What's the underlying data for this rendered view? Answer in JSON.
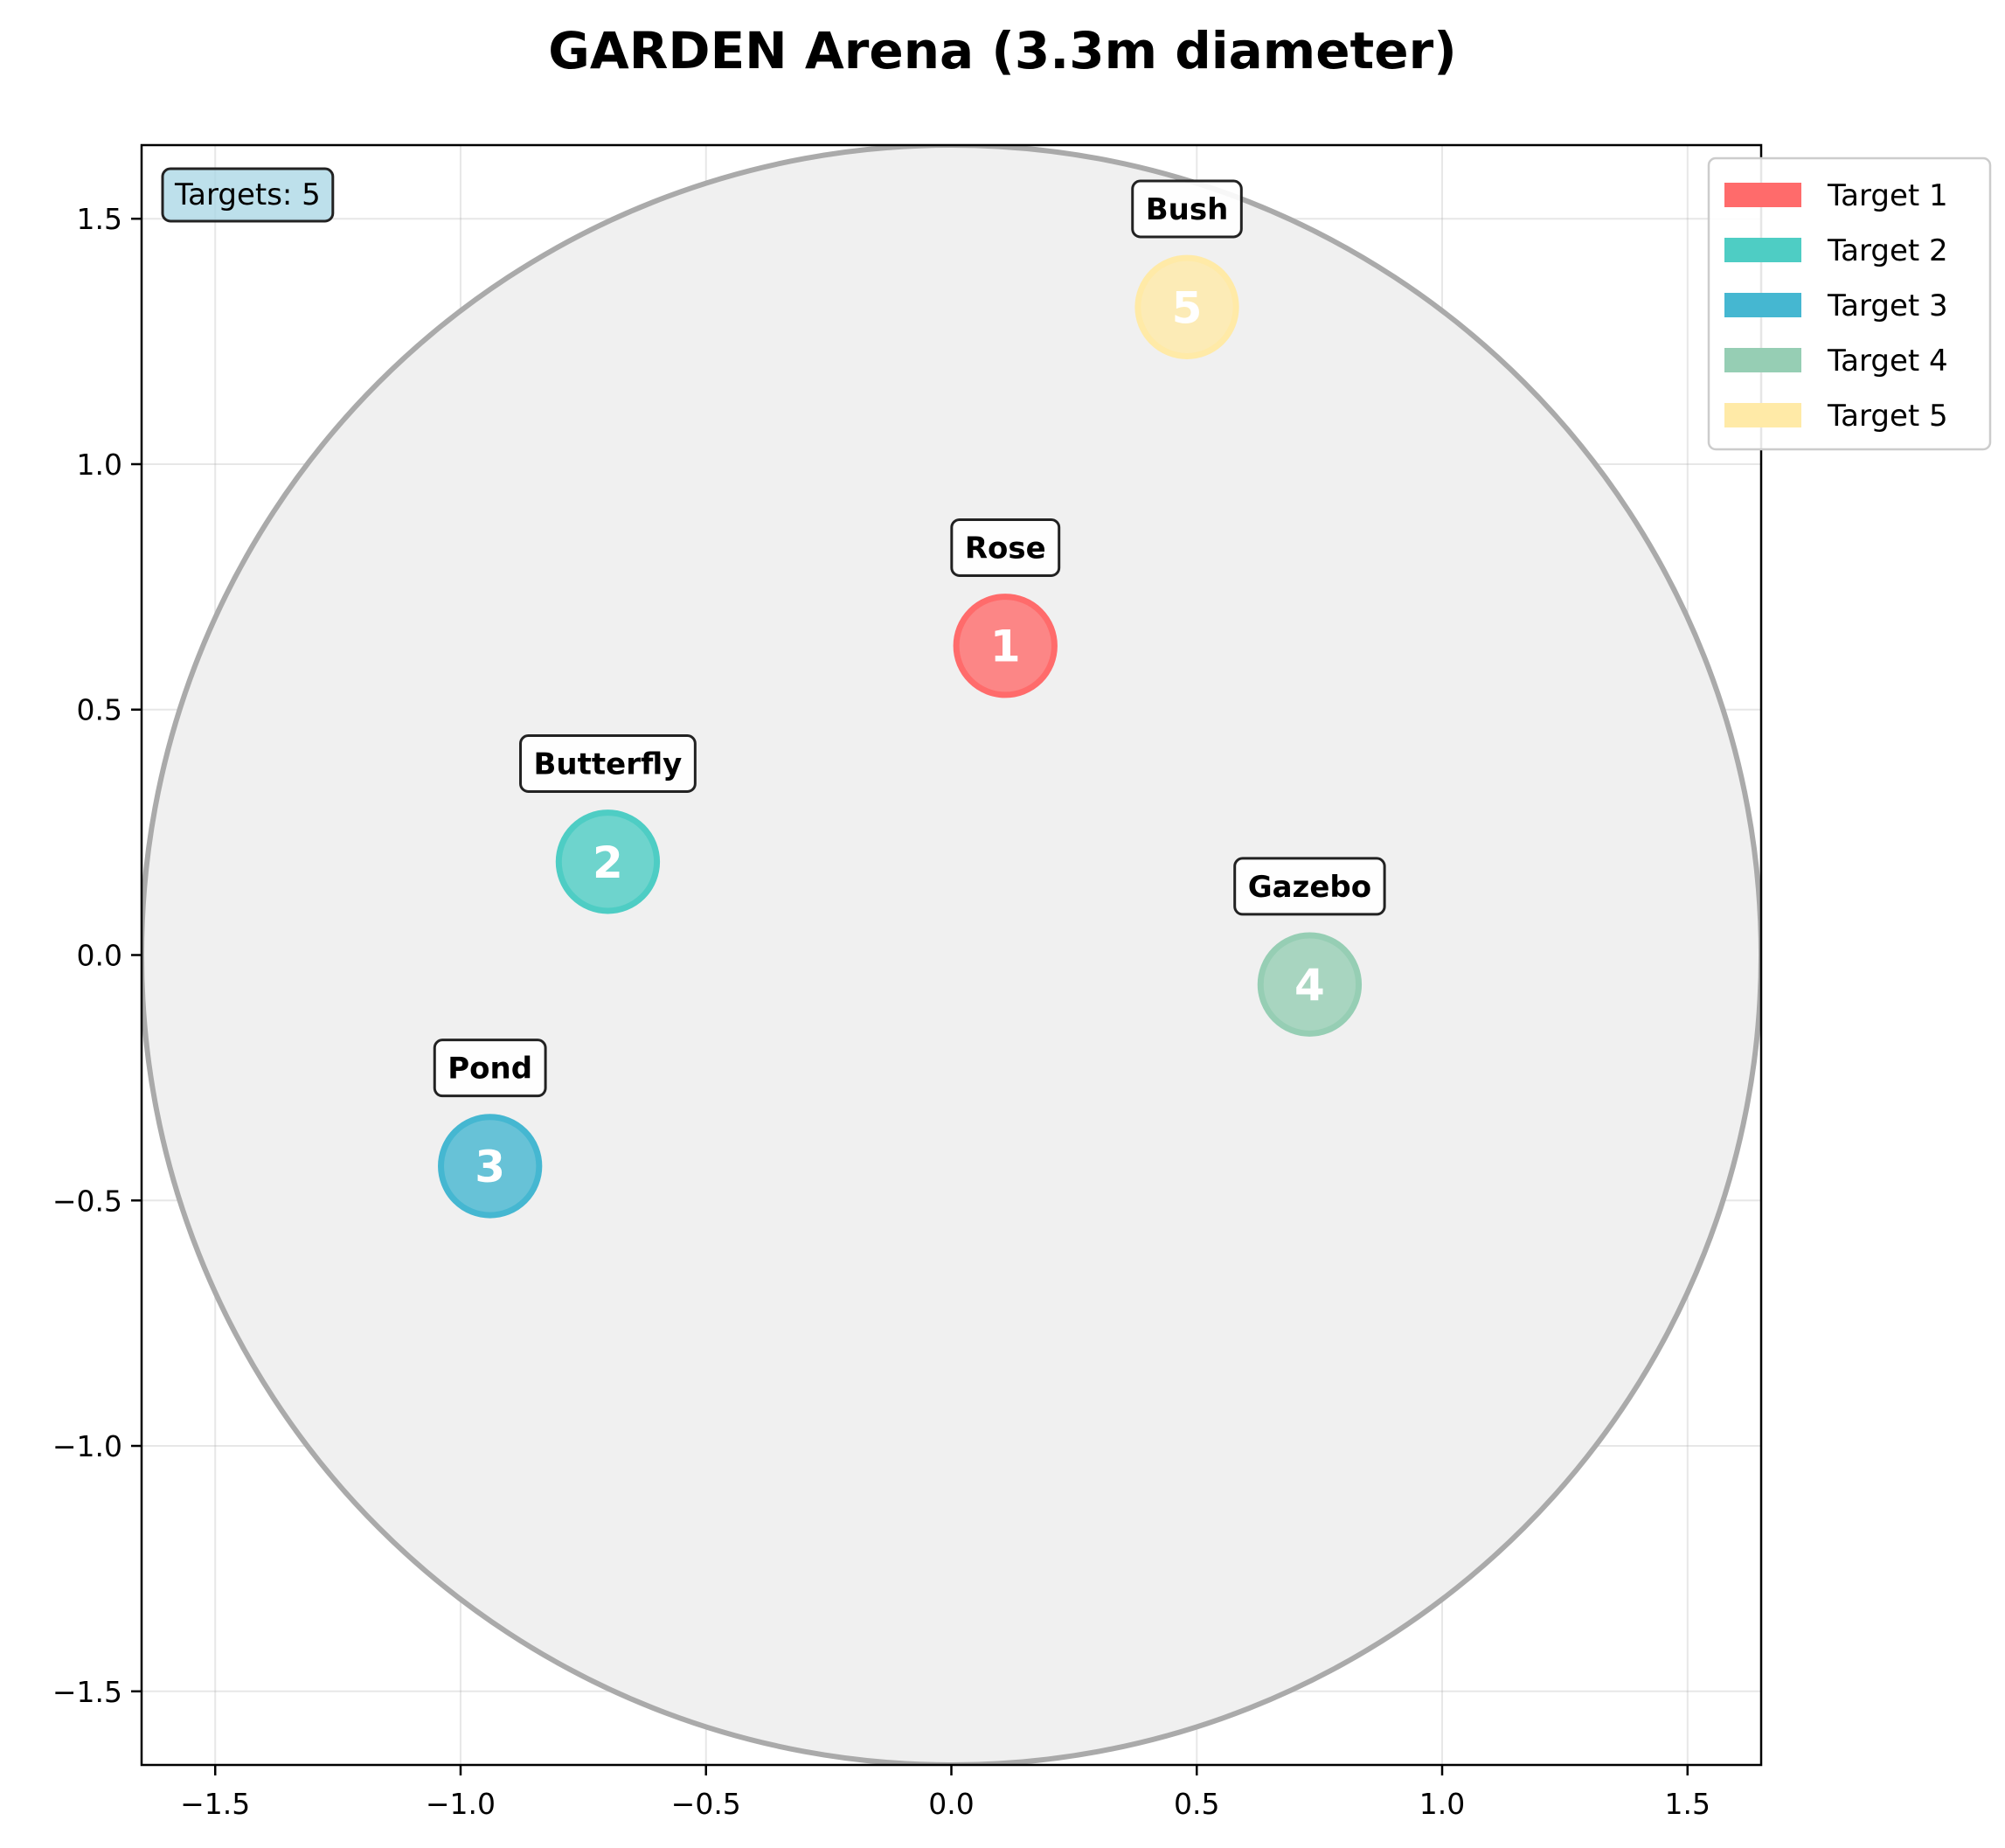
{
  "chart_data": {
    "type": "scatter",
    "title": "GARDEN Arena (3.3m diameter)",
    "xlabel": "",
    "ylabel": "",
    "xlim": [
      -1.65,
      1.65
    ],
    "ylim": [
      -1.65,
      1.65
    ],
    "x_ticks": [
      -1.5,
      -1.0,
      -0.5,
      0.0,
      0.5,
      1.0,
      1.5
    ],
    "y_ticks": [
      -1.5,
      -1.0,
      -0.5,
      0.0,
      0.5,
      1.0,
      1.5
    ],
    "x_tick_labels": [
      "−1.5",
      "−1.0",
      "−0.5",
      "0.0",
      "0.5",
      "1.0",
      "1.5"
    ],
    "y_tick_labels": [
      "−1.5",
      "−1.0",
      "−0.5",
      "0.0",
      "0.5",
      "1.0",
      "1.5"
    ],
    "grid": true,
    "arena": {
      "center": [
        0,
        0
      ],
      "radius": 1.65,
      "fill": "#f0f0f0",
      "edge": "#aaaaaa"
    },
    "target_radius": 0.1,
    "counter_text": "Targets: 5",
    "counter_position": "top-left",
    "legend_position": "top-right-outside",
    "targets": [
      {
        "number": "1",
        "label": "Rose",
        "x": 0.11,
        "y": 0.63,
        "color": "#ff6b6b",
        "legend": "Target 1"
      },
      {
        "number": "2",
        "label": "Butterfly",
        "x": -0.7,
        "y": 0.19,
        "color": "#4ecdc4",
        "legend": "Target 2"
      },
      {
        "number": "3",
        "label": "Pond",
        "x": -0.94,
        "y": -0.43,
        "color": "#45b7d1",
        "legend": "Target 3"
      },
      {
        "number": "4",
        "label": "Gazebo",
        "x": 0.73,
        "y": -0.06,
        "color": "#96ceb4",
        "legend": "Target 4"
      },
      {
        "number": "5",
        "label": "Bush",
        "x": 0.48,
        "y": 1.32,
        "color": "#ffeaa7",
        "legend": "Target 5"
      }
    ]
  }
}
